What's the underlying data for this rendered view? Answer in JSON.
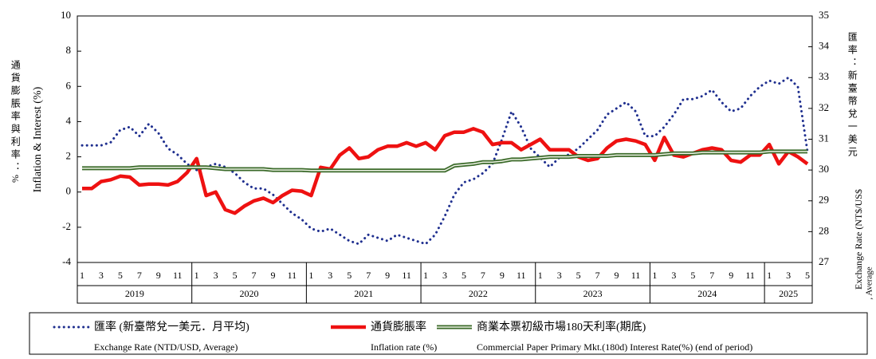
{
  "chart_data": {
    "type": "line",
    "y_label": "Inflation & Interest (%)",
    "y_label_zh": "通貨膨脹率與利率：%",
    "y2_label_zh": "匯率：新臺幣兌一美元",
    "y2_label": [
      "Exchange Rate (NT$/US$",
      ", Average"
    ],
    "categories": [
      1,
      null,
      3,
      null,
      5,
      null,
      7,
      null,
      9,
      null,
      11,
      null,
      1,
      null,
      3,
      null,
      5,
      null,
      7,
      null,
      9,
      null,
      11,
      null,
      1,
      null,
      3,
      null,
      5,
      null,
      7,
      null,
      9,
      null,
      11,
      null,
      1,
      null,
      3,
      null,
      5,
      null,
      7,
      null,
      9,
      null,
      11,
      null,
      1,
      null,
      3,
      null,
      5,
      null,
      7,
      null,
      9,
      null,
      11,
      null,
      1,
      null,
      3,
      null,
      5,
      null,
      7,
      null,
      9,
      null,
      11,
      null,
      1,
      null,
      3,
      null,
      5
    ],
    "year_labels": [
      2019,
      2020,
      2021,
      2022,
      2023,
      2024,
      2025
    ],
    "ylim": [
      -4,
      10
    ],
    "yticks": [
      -4,
      -2,
      0,
      2,
      4,
      6,
      8,
      10
    ],
    "y2lim": [
      27,
      35
    ],
    "y2ticks": [
      27,
      28,
      29,
      30,
      31,
      32,
      33,
      34,
      35
    ],
    "series": [
      {
        "name": "匯率 (新臺幣兌一美元．月平均)",
        "name_en": "Exchange Rate (NTD/USD, Average)",
        "color": "#1f2f8f",
        "style": "dotted",
        "axis": "y2",
        "values": [
          30.8,
          30.8,
          30.8,
          30.9,
          31.3,
          31.4,
          31.1,
          31.5,
          31.2,
          30.7,
          30.5,
          30.2,
          30.0,
          30.1,
          30.2,
          30.1,
          29.9,
          29.6,
          29.4,
          29.4,
          29.2,
          28.9,
          28.6,
          28.4,
          28.1,
          28.0,
          28.1,
          27.9,
          27.7,
          27.6,
          27.9,
          27.8,
          27.7,
          27.9,
          27.8,
          27.7,
          27.6,
          27.9,
          28.5,
          29.2,
          29.6,
          29.7,
          29.9,
          30.2,
          31.0,
          31.9,
          31.4,
          30.7,
          30.4,
          30.1,
          30.4,
          30.5,
          30.7,
          31.0,
          31.3,
          31.8,
          32.0,
          32.2,
          31.9,
          31.1,
          31.1,
          31.4,
          31.8,
          32.3,
          32.3,
          32.4,
          32.6,
          32.2,
          31.9,
          32.0,
          32.4,
          32.7,
          32.9,
          32.8,
          33.0,
          32.7,
          30.6
        ]
      },
      {
        "name": "通貨膨脹率",
        "name_en": "Inflation rate (%)",
        "color": "#ee1111",
        "style": "solid",
        "values": [
          0.2,
          0.2,
          0.6,
          0.7,
          0.9,
          0.85,
          0.4,
          0.45,
          0.45,
          0.4,
          0.6,
          1.1,
          1.9,
          -0.2,
          0.0,
          -1.0,
          -1.2,
          -0.8,
          -0.5,
          -0.35,
          -0.6,
          -0.2,
          0.1,
          0.05,
          -0.2,
          1.4,
          1.3,
          2.1,
          2.5,
          1.9,
          2.0,
          2.4,
          2.6,
          2.6,
          2.8,
          2.6,
          2.8,
          2.4,
          3.2,
          3.4,
          3.4,
          3.6,
          3.4,
          2.7,
          2.8,
          2.8,
          2.4,
          2.7,
          3.0,
          2.4,
          2.4,
          2.4,
          2.0,
          1.8,
          1.9,
          2.5,
          2.9,
          3.0,
          2.9,
          2.7,
          1.8,
          3.1,
          2.1,
          2.0,
          2.2,
          2.4,
          2.5,
          2.4,
          1.8,
          1.7,
          2.1,
          2.1,
          2.7,
          1.6,
          2.3,
          2.0,
          1.6
        ]
      },
      {
        "name": "商業本票初級市場180天利率(期底)",
        "name_en": "Commercial Paper Primary Mkt.(180d) Interest Rate(%)  (end of period)",
        "color": "#3b6a2a",
        "style": "double",
        "values": [
          1.35,
          1.35,
          1.35,
          1.35,
          1.35,
          1.35,
          1.4,
          1.4,
          1.4,
          1.4,
          1.4,
          1.4,
          1.4,
          1.4,
          1.35,
          1.3,
          1.3,
          1.3,
          1.3,
          1.3,
          1.25,
          1.25,
          1.25,
          1.25,
          1.22,
          1.22,
          1.22,
          1.22,
          1.22,
          1.22,
          1.22,
          1.22,
          1.22,
          1.22,
          1.22,
          1.22,
          1.22,
          1.22,
          1.22,
          1.5,
          1.55,
          1.6,
          1.7,
          1.7,
          1.75,
          1.85,
          1.85,
          1.9,
          1.95,
          2.0,
          2.0,
          2.0,
          2.05,
          2.05,
          2.05,
          2.05,
          2.1,
          2.1,
          2.1,
          2.1,
          2.1,
          2.15,
          2.2,
          2.2,
          2.2,
          2.25,
          2.25,
          2.25,
          2.25,
          2.25,
          2.25,
          2.25,
          2.3,
          2.3,
          2.3,
          2.3,
          2.3
        ]
      }
    ]
  }
}
